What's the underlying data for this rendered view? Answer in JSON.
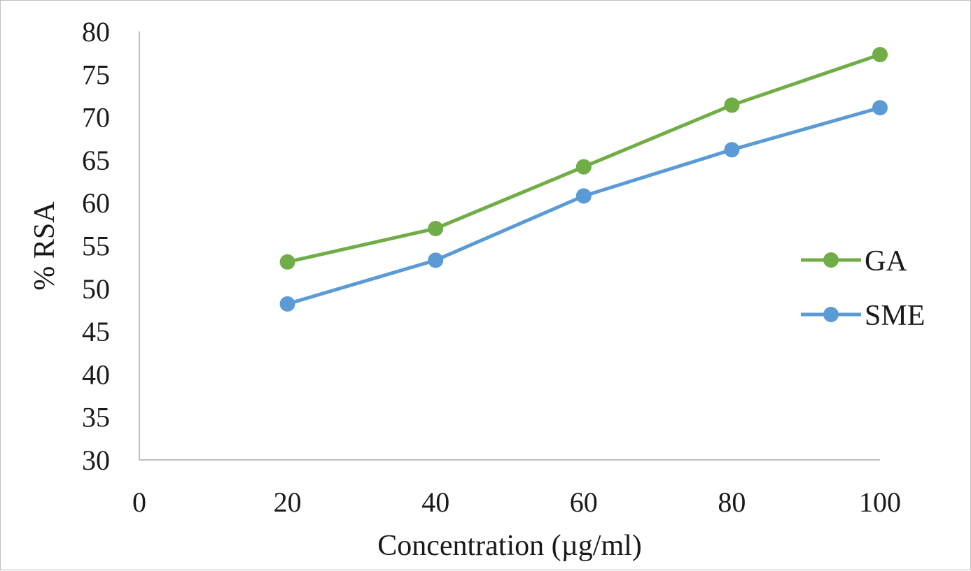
{
  "chart_data": {
    "type": "line",
    "title": "",
    "xlabel": "Concentration (µg/ml)",
    "ylabel": "% RSA",
    "xlim": [
      0,
      100
    ],
    "ylim": [
      30,
      80
    ],
    "x_ticks": [
      "0",
      "20",
      "40",
      "60",
      "80",
      "100"
    ],
    "y_ticks": [
      "30",
      "35",
      "40",
      "45",
      "50",
      "55",
      "60",
      "65",
      "70",
      "75",
      "80"
    ],
    "x": [
      20,
      40,
      60,
      80,
      100
    ],
    "series": [
      {
        "name": "GA",
        "color": "#70ad47",
        "values": [
          53.1,
          57.0,
          64.2,
          71.4,
          77.3
        ]
      },
      {
        "name": "SME",
        "color": "#5b9bd5",
        "values": [
          48.2,
          53.3,
          60.8,
          66.2,
          71.1
        ]
      }
    ],
    "grid": false,
    "legend_position": "right"
  }
}
